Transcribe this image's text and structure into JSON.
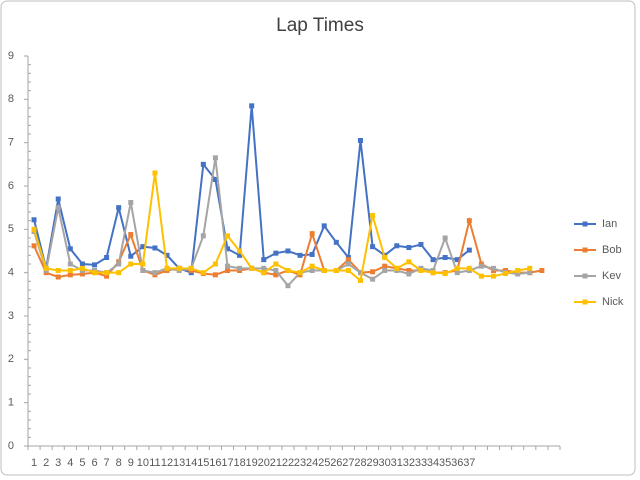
{
  "chart_data": {
    "type": "line",
    "title": "Lap Times",
    "categories": [
      "1",
      "2",
      "3",
      "4",
      "5",
      "6",
      "7",
      "8",
      "9",
      "10",
      "11",
      "12",
      "13",
      "14",
      "15",
      "16",
      "17",
      "18",
      "19",
      "20",
      "21",
      "22",
      "23",
      "24",
      "25",
      "26",
      "27",
      "28",
      "29",
      "30",
      "31",
      "32",
      "33",
      "34",
      "35",
      "36",
      "37",
      null,
      null,
      null,
      null,
      null,
      null,
      null
    ],
    "series": [
      {
        "name": "Ian",
        "color": "#4472c4",
        "values": [
          5.22,
          4.1,
          5.7,
          4.55,
          4.2,
          4.18,
          4.35,
          5.5,
          4.38,
          4.6,
          4.57,
          4.4,
          4.1,
          4.0,
          6.5,
          6.15,
          4.55,
          4.4,
          7.85,
          4.3,
          4.45,
          4.5,
          4.4,
          4.42,
          5.08,
          4.7,
          4.35,
          7.05,
          4.6,
          4.4,
          4.62,
          4.58,
          4.65,
          4.3,
          4.35,
          4.3,
          4.52,
          null,
          null,
          null,
          null,
          null,
          null,
          null
        ]
      },
      {
        "name": "Bob",
        "color": "#ed7d31",
        "values": [
          4.62,
          4.0,
          3.9,
          3.95,
          3.97,
          4.0,
          3.92,
          4.25,
          4.88,
          4.05,
          3.95,
          4.05,
          4.1,
          4.05,
          3.98,
          3.95,
          4.05,
          4.05,
          4.1,
          4.0,
          3.95,
          4.05,
          3.95,
          4.9,
          4.05,
          4.05,
          4.3,
          4.0,
          4.02,
          4.15,
          4.1,
          4.05,
          4.05,
          4.0,
          4.0,
          4.05,
          5.2,
          4.2,
          4.05,
          4.05,
          4.0,
          4.0,
          4.05,
          null
        ]
      },
      {
        "name": "Kev",
        "color": "#a5a5a5",
        "values": [
          4.95,
          4.05,
          5.5,
          4.2,
          4.05,
          4.05,
          4.0,
          4.2,
          5.62,
          4.05,
          4.0,
          4.1,
          4.05,
          4.1,
          4.85,
          6.65,
          4.15,
          4.1,
          4.1,
          4.1,
          4.05,
          3.7,
          4.0,
          4.05,
          4.05,
          4.05,
          4.2,
          4.0,
          3.85,
          4.05,
          4.05,
          3.97,
          4.1,
          4.05,
          4.8,
          4.0,
          4.05,
          4.15,
          4.1,
          4.0,
          3.97,
          4.0,
          null,
          null
        ]
      },
      {
        "name": "Nick",
        "color": "#ffc000",
        "values": [
          5.0,
          4.1,
          4.05,
          4.05,
          4.1,
          4.0,
          4.0,
          4.0,
          4.2,
          4.2,
          6.3,
          4.1,
          4.1,
          4.1,
          4.0,
          4.2,
          4.85,
          4.5,
          4.1,
          4.0,
          4.2,
          4.05,
          4.0,
          4.15,
          4.05,
          4.05,
          4.05,
          3.82,
          5.32,
          4.35,
          4.1,
          4.25,
          4.05,
          4.0,
          3.98,
          4.1,
          4.1,
          3.92,
          3.92,
          3.98,
          4.05,
          4.1,
          null,
          null
        ]
      }
    ],
    "ylim": [
      0,
      9
    ],
    "yticks": [
      0,
      1,
      2,
      3,
      4,
      5,
      6,
      7,
      8,
      9
    ],
    "grid": false,
    "legend": "right"
  }
}
